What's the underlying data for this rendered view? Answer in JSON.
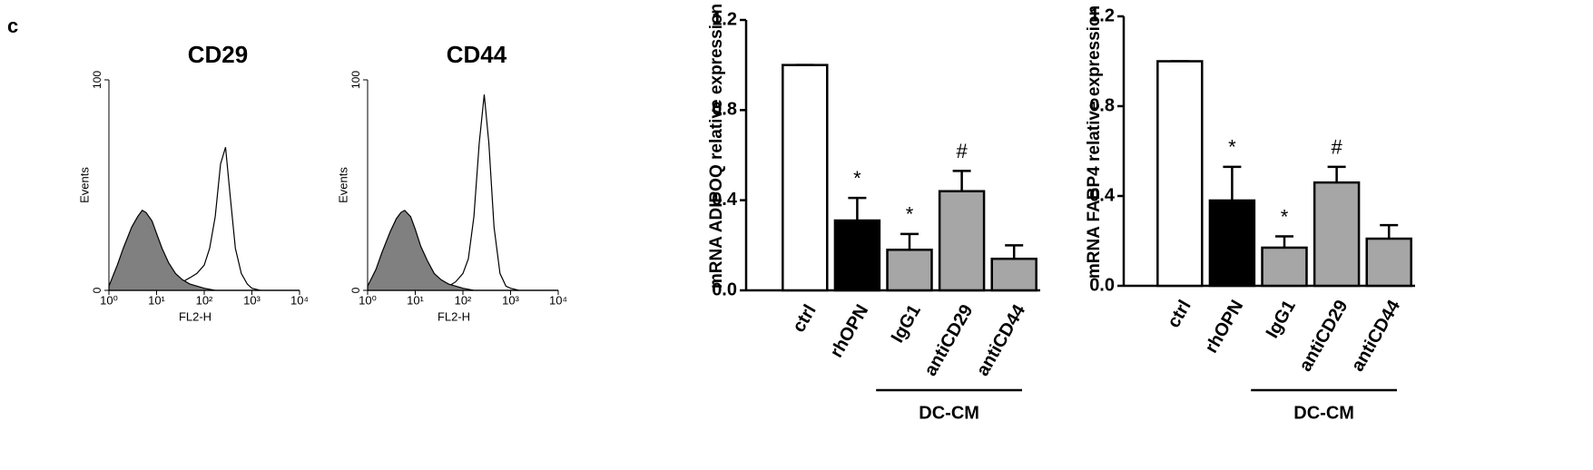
{
  "panel_label": "c",
  "chart_data": [
    {
      "type": "histogram",
      "title": "CD29",
      "xlabel": "FL2-H",
      "ylabel": "Events",
      "xscale": "log",
      "xlim": [
        1,
        10000
      ],
      "ylim": [
        0,
        100
      ],
      "xticks": [
        {
          "value": 1,
          "label": "10⁰"
        },
        {
          "value": 10,
          "label": "10¹"
        },
        {
          "value": 100,
          "label": "10²"
        },
        {
          "value": 1000,
          "label": "10³"
        },
        {
          "value": 10000,
          "label": "10⁴"
        }
      ],
      "yticks": [
        0,
        100
      ],
      "series": [
        {
          "color": "#808080",
          "x": [
            1,
            1.5,
            2,
            3,
            4,
            5,
            6,
            8,
            10,
            13,
            18,
            25,
            35,
            50,
            70,
            100,
            130,
            170,
            220,
            280,
            350,
            450,
            600,
            800,
            1000,
            1500,
            10000
          ],
          "values": [
            2,
            12,
            20,
            30,
            35,
            38,
            37,
            33,
            27,
            20,
            13,
            8,
            5,
            3,
            2,
            1,
            0.5,
            0,
            0,
            0,
            0,
            0,
            0,
            0,
            0,
            0,
            0
          ]
        },
        {
          "color": "#ffffff",
          "x": [
            1,
            1.5,
            2,
            3,
            4,
            5,
            6,
            8,
            10,
            13,
            18,
            25,
            35,
            50,
            70,
            100,
            130,
            170,
            220,
            280,
            350,
            450,
            600,
            800,
            1000,
            1500,
            10000
          ],
          "values": [
            0,
            0,
            0,
            0,
            0,
            0,
            0,
            0.5,
            1,
            1.5,
            2,
            3,
            4,
            6,
            8,
            12,
            20,
            35,
            60,
            68,
            45,
            20,
            8,
            3,
            1,
            0,
            0
          ]
        }
      ]
    },
    {
      "type": "histogram",
      "title": "CD44",
      "xlabel": "FL2-H",
      "ylabel": "Events",
      "xscale": "log",
      "xlim": [
        1,
        10000
      ],
      "ylim": [
        0,
        100
      ],
      "xticks": [
        {
          "value": 1,
          "label": "10⁰"
        },
        {
          "value": 10,
          "label": "10¹"
        },
        {
          "value": 100,
          "label": "10²"
        },
        {
          "value": 1000,
          "label": "10³"
        },
        {
          "value": 10000,
          "label": "10⁴"
        }
      ],
      "yticks": [
        0,
        100
      ],
      "series": [
        {
          "color": "#808080",
          "x": [
            1,
            1.5,
            2,
            3,
            4,
            5,
            6,
            8,
            10,
            13,
            18,
            25,
            35,
            50,
            70,
            100,
            130,
            170,
            220,
            280,
            350,
            450,
            600,
            800,
            1000,
            1500,
            10000
          ],
          "values": [
            2,
            10,
            18,
            28,
            34,
            37,
            38,
            35,
            29,
            21,
            14,
            8,
            5,
            3,
            2,
            1,
            0.5,
            0,
            0,
            0,
            0,
            0,
            0,
            0,
            0,
            0,
            0
          ]
        },
        {
          "color": "#ffffff",
          "x": [
            1,
            1.5,
            2,
            3,
            4,
            5,
            6,
            8,
            10,
            13,
            18,
            25,
            35,
            50,
            70,
            100,
            130,
            170,
            220,
            280,
            350,
            450,
            600,
            800,
            1000,
            1500,
            10000
          ],
          "values": [
            0,
            0,
            0,
            0,
            0,
            0,
            0,
            0,
            0,
            0.5,
            1,
            1,
            1.5,
            2,
            4,
            8,
            15,
            35,
            70,
            93,
            70,
            30,
            8,
            2,
            1,
            0,
            0
          ]
        }
      ]
    },
    {
      "type": "bar",
      "ylabel": "mRNA ADIPOQ relative expression",
      "categories": [
        "ctrl",
        "rhOPN",
        "IgG1",
        "antiCD29",
        "antiCD44"
      ],
      "values": [
        1.0,
        0.31,
        0.18,
        0.44,
        0.14
      ],
      "errors": [
        0,
        0.1,
        0.07,
        0.09,
        0.06
      ],
      "colors": [
        "#ffffff",
        "#000000",
        "#a6a6a6",
        "#a6a6a6",
        "#a6a6a6"
      ],
      "markers": [
        null,
        "*",
        "*",
        "#",
        null
      ],
      "group": {
        "label": "DC-CM",
        "categories": [
          "IgG1",
          "antiCD29",
          "antiCD44"
        ]
      },
      "ylim": [
        0,
        1.2
      ],
      "yticks": [
        {
          "value": 0,
          "label": "0.0"
        },
        0.4,
        0.8,
        1.2
      ]
    },
    {
      "type": "bar",
      "ylabel": "mRNA FABP4 relative expression",
      "categories": [
        "ctrl",
        "rhOPN",
        "IgG1",
        "antiCD29",
        "antiCD44"
      ],
      "values": [
        1.0,
        0.38,
        0.17,
        0.46,
        0.21
      ],
      "errors": [
        0,
        0.15,
        0.05,
        0.07,
        0.06
      ],
      "colors": [
        "#ffffff",
        "#000000",
        "#a6a6a6",
        "#a6a6a6",
        "#a6a6a6"
      ],
      "markers": [
        null,
        "*",
        "*",
        "#",
        null
      ],
      "group": {
        "label": "DC-CM",
        "categories": [
          "IgG1",
          "antiCD29",
          "antiCD44"
        ]
      },
      "ylim": [
        0,
        1.2
      ],
      "yticks": [
        {
          "value": 0,
          "label": "0.0"
        },
        0.4,
        0.8,
        1.2
      ]
    }
  ]
}
